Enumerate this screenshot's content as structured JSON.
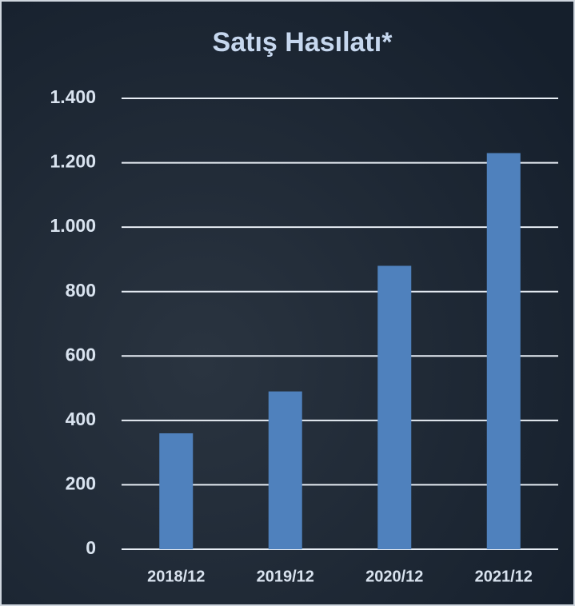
{
  "chart_data": {
    "type": "bar",
    "title": "Satış Hasılatı*",
    "categories": [
      "2018/12",
      "2019/12",
      "2020/12",
      "2021/12"
    ],
    "values": [
      360,
      490,
      880,
      1230
    ],
    "color": "#4f81bd",
    "ylim": [
      0,
      1400
    ],
    "yticks": [
      0,
      200,
      400,
      600,
      800,
      {
        "value": 1000,
        "label": "1.000"
      },
      {
        "value": 1200,
        "label": "1.200"
      },
      {
        "value": 1400,
        "label": "1.400"
      }
    ],
    "grid": true
  }
}
